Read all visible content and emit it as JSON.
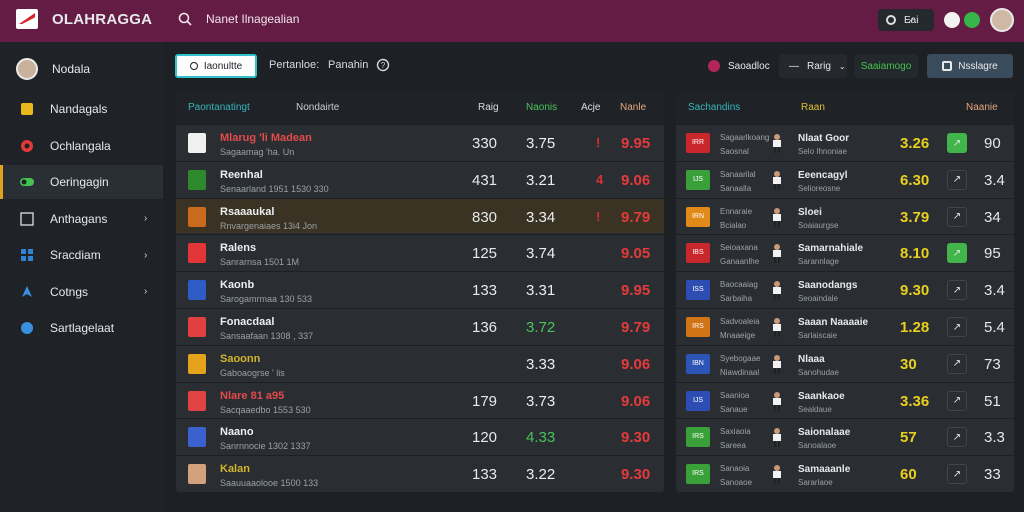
{
  "topbar": {
    "brand": "OLAHRAGGA",
    "search": "Nanet Ilnagealian",
    "pill": "E̷ai"
  },
  "sidebar": {
    "user": "Nodala",
    "items": [
      {
        "label": "Nandagals",
        "icon": "trophy-icon",
        "active": false,
        "chevron": false
      },
      {
        "label": "Ochlangala",
        "icon": "target-icon",
        "active": false,
        "chevron": false
      },
      {
        "label": "Oeringagin",
        "icon": "toggle-icon",
        "active": true,
        "chevron": false
      },
      {
        "label": "Anthagans",
        "icon": "grid-icon",
        "active": false,
        "chevron": true
      },
      {
        "label": "Sracdiam",
        "icon": "squares-icon",
        "active": false,
        "chevron": true
      },
      {
        "label": "Cotngs",
        "icon": "rocket-icon",
        "active": false,
        "chevron": true
      },
      {
        "label": "Sartlagelaat",
        "icon": "globe-icon",
        "active": false,
        "chevron": false
      }
    ]
  },
  "header": {
    "btn": "Iaonultte",
    "perf": "Pertanloe:",
    "pen": "Panahin",
    "sort": "Saoadloc",
    "dd": "Rarig",
    "green": "Saaiamogo",
    "sett": "Nsslagre"
  },
  "left": {
    "cols": [
      "Paontanatingt",
      "Nondairte",
      "Raig",
      "Naonis",
      "Acje",
      "Nanle"
    ],
    "rows": [
      {
        "name": "Mlarug 'li Madean",
        "sub": "Sagaamag 'ha. Un",
        "a": "330",
        "b": "3.75",
        "c": "9.95",
        "mark": "!",
        "markColor": "#d93030",
        "crest": "#f0f0f0",
        "nameColor": "#e34a4a"
      },
      {
        "name": "Reenhal",
        "sub": "Senaarland 1951 1530 330",
        "a": "431",
        "b": "3.21",
        "c": "9.06",
        "mark": "4",
        "markColor": "#d93030",
        "crest": "#2c8a2c",
        "nameColor": "#eceff1"
      },
      {
        "name": "Rsaaaukal",
        "sub": "Rnvargenaiaes 13i4 Jon",
        "a": "830",
        "b": "3.34",
        "c": "9.79",
        "mark": "!",
        "markColor": "#d93030",
        "crest": "#c96a1c",
        "nameColor": "#eceff1",
        "selected": true
      },
      {
        "name": "Ralens",
        "sub": "Sanrarnsa 1501 1M",
        "a": "125",
        "b": "3.74",
        "c": "9.05",
        "mark": "",
        "markColor": "",
        "crest": "#e23535",
        "nameColor": "#eceff1"
      },
      {
        "name": "Kaonb",
        "sub": "Sarogamrmaa 130 533",
        "a": "133",
        "b": "3.31",
        "c": "9.95",
        "mark": "",
        "markColor": "",
        "crest": "#2d5cc7",
        "nameColor": "#eceff1"
      },
      {
        "name": "Fonacdaal",
        "sub": "Sansaafaan 1308 , 337",
        "a": "136",
        "b": "3.72",
        "c": "9.79",
        "mark": "",
        "markColor": "",
        "crest": "#e24040",
        "nameColor": "#eceff1"
      },
      {
        "name": "Saoonn",
        "sub": "Gaboaogrse ' lis",
        "a": "",
        "b": "3.33",
        "c": "9.06",
        "mark": "",
        "markColor": "",
        "crest": "#e5a31c",
        "nameColor": "#d0b62a"
      },
      {
        "name": "Nlare 81 a95",
        "sub": "Sacqaaedbo 1553 530",
        "a": "179",
        "b": "3.73",
        "c": "9.06",
        "mark": "",
        "markColor": "",
        "crest": "#e04343",
        "nameColor": "#e34a4a"
      },
      {
        "name": "Naano",
        "sub": "Sanrnnocie 1302 1337",
        "a": "120",
        "b": "4.33",
        "c": "9.30",
        "mark": "",
        "markColor": "",
        "crest": "#3a61cc",
        "nameColor": "#eceff1"
      },
      {
        "name": "Kalan",
        "sub": "Saauuaaolooe 1500 133",
        "a": "133",
        "b": "3.22",
        "c": "9.30",
        "mark": "",
        "markColor": "",
        "crest": "#d2a07c",
        "nameColor": "#d0b62a"
      }
    ]
  },
  "right": {
    "cols": [
      "Sachandins",
      "Raan",
      "Naanie"
    ],
    "rows": [
      {
        "code": "IRR",
        "t1": "Sagaarlkoang",
        "t2": "Saosnal",
        "name": "Nlaat Goor",
        "sub": "Selo Ihnoniae",
        "v": "3.26",
        "v2": "90",
        "btnOn": true,
        "codeBg": "#c9272b"
      },
      {
        "code": "IJS",
        "t1": "Sanaarilal",
        "t2": "Sanaalla",
        "name": "Eeencagyl",
        "sub": "Selioreosne",
        "v": "6.30",
        "v2": "3.4",
        "btnOn": false,
        "codeBg": "#3aa13a"
      },
      {
        "code": "IRN",
        "t1": "Ennaraie",
        "t2": "Bcialao",
        "name": "Sloei",
        "sub": "Soaiaurgse",
        "v": "3.79",
        "v2": "34",
        "btnOn": false,
        "codeBg": "#e08a17"
      },
      {
        "code": "IBS",
        "t1": "Seioaxana",
        "t2": "Ganaanlhe",
        "name": "Samarnahiale",
        "sub": "Sarannlage",
        "v": "8.10",
        "v2": "95",
        "btnOn": true,
        "codeBg": "#c9272b"
      },
      {
        "code": "ISS",
        "t1": "Baocaaiag",
        "t2": "Sarbaiha",
        "name": "Saanodangs",
        "sub": "Seoaindale",
        "v": "9.30",
        "v2": "3.4",
        "btnOn": false,
        "codeBg": "#2d4db2"
      },
      {
        "code": "IRS",
        "t1": "Sadvoaleia",
        "t2": "Mnaaeige",
        "name": "Saaan Naaaaie",
        "sub": "Sarlaiscaie",
        "v": "1.28",
        "v2": "5.4",
        "btnOn": false,
        "codeBg": "#d17416"
      },
      {
        "code": "IBN",
        "t1": "Syebogaae",
        "t2": "Niawdinaal",
        "name": "Nlaaa",
        "sub": "Sanohudae",
        "v": "30",
        "v2": "73",
        "btnOn": false,
        "codeBg": "#2d55b8"
      },
      {
        "code": "IJS",
        "t1": "Saanioa",
        "t2": "Sanaue",
        "name": "Saankaoe",
        "sub": "Sealdaue",
        "v": "3.36",
        "v2": "51",
        "btnOn": false,
        "codeBg": "#2d4db2"
      },
      {
        "code": "IRS",
        "t1": "Saxiaoia",
        "t2": "Sareea",
        "name": "Saionalaae",
        "sub": "Sanoalaoe",
        "v": "57",
        "v2": "3.3",
        "btnOn": false,
        "codeBg": "#3aa13a"
      },
      {
        "code": "IRS",
        "t1": "Sanaoia",
        "t2": "Sanoaoe",
        "name": "Samaaanle",
        "sub": "Sararlaoe",
        "v": "60",
        "v2": "33",
        "btnOn": false,
        "codeBg": "#3aa13a"
      }
    ]
  },
  "colors": {
    "accent": "#e0a21d",
    "brand": "#641b44",
    "red": "#e34a4a",
    "green": "#41b549",
    "yellow": "#e9d01f"
  }
}
